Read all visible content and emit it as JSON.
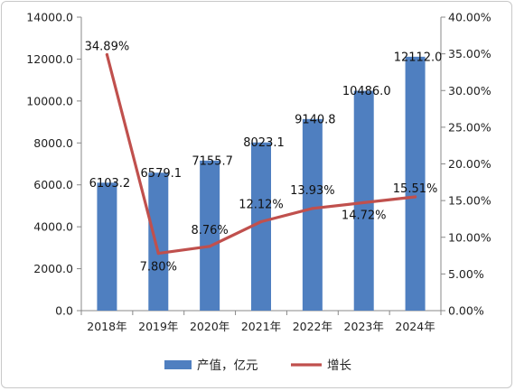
{
  "chart_data": {
    "type": "bar",
    "categories": [
      "2018年",
      "2019年",
      "2020年",
      "2021年",
      "2022年",
      "2023年",
      "2024年"
    ],
    "series": [
      {
        "name": "产值，亿元",
        "type": "bar",
        "axis": "left",
        "color": "#4f7fc0",
        "values": [
          6103.2,
          6579.1,
          7155.7,
          8023.1,
          9140.8,
          10486.0,
          12112.0
        ],
        "labels": [
          "6103.2",
          "6579.1",
          "7155.7",
          "8023.1",
          "9140.8",
          "10486.0",
          "12112.0"
        ]
      },
      {
        "name": "增长",
        "type": "line",
        "axis": "right",
        "color": "#c0504d",
        "values": [
          34.89,
          7.8,
          8.76,
          12.12,
          13.93,
          14.72,
          15.51
        ],
        "labels": [
          "34.89%",
          "7.80%",
          "8.76%",
          "12.12%",
          "13.93%",
          "14.72%",
          "15.51%"
        ]
      }
    ],
    "y_left": {
      "min": 0,
      "max": 14000,
      "ticks": [
        "0.0",
        "2000.0",
        "4000.0",
        "6000.0",
        "8000.0",
        "10000.0",
        "12000.0",
        "14000.0"
      ]
    },
    "y_right": {
      "min": 0,
      "max": 40,
      "ticks": [
        "0.00%",
        "5.00%",
        "10.00%",
        "15.00%",
        "20.00%",
        "25.00%",
        "30.00%",
        "35.00%",
        "40.00%"
      ]
    },
    "grid": false,
    "legend_position": "bottom"
  }
}
